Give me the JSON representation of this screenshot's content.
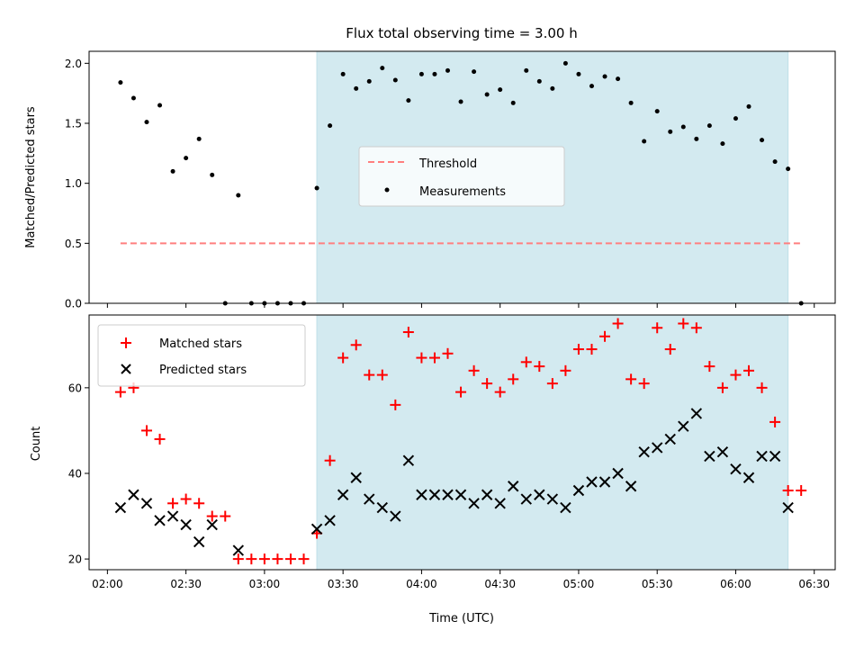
{
  "chart_data": [
    {
      "type": "scatter",
      "title": "Flux total observing time = 3.00 h",
      "ylabel": "Matched/Predicted stars",
      "ylim": [
        0,
        2.1
      ],
      "yticks": [
        "0.0",
        "0.5",
        "1.0",
        "1.5",
        "2.0"
      ],
      "xlim": [
        "01:53",
        "06:38"
      ],
      "shaded_region": {
        "x": [
          "03:20",
          "06:20"
        ],
        "color": "#d3eaf0"
      },
      "threshold": {
        "name": "Threshold",
        "y": 0.5,
        "x": [
          "02:05",
          "06:25"
        ],
        "color": "#ff7f7f",
        "style": "dashed"
      },
      "legend": {
        "placement": "center"
      },
      "series": [
        {
          "name": "Measurements",
          "marker": "dot",
          "color": "#000000",
          "points": [
            [
              "02:05",
              1.84
            ],
            [
              "02:10",
              1.71
            ],
            [
              "02:15",
              1.51
            ],
            [
              "02:20",
              1.65
            ],
            [
              "02:25",
              1.1
            ],
            [
              "02:30",
              1.21
            ],
            [
              "02:35",
              1.37
            ],
            [
              "02:40",
              1.07
            ],
            [
              "02:45",
              0
            ],
            [
              "02:50",
              0.9
            ],
            [
              "02:55",
              0
            ],
            [
              "03:00",
              0
            ],
            [
              "03:05",
              0
            ],
            [
              "03:10",
              0
            ],
            [
              "03:15",
              0
            ],
            [
              "03:20",
              0.96
            ],
            [
              "03:25",
              1.48
            ],
            [
              "03:30",
              1.91
            ],
            [
              "03:35",
              1.79
            ],
            [
              "03:40",
              1.85
            ],
            [
              "03:45",
              1.96
            ],
            [
              "03:50",
              1.86
            ],
            [
              "03:55",
              1.69
            ],
            [
              "04:00",
              1.91
            ],
            [
              "04:05",
              1.91
            ],
            [
              "04:10",
              1.94
            ],
            [
              "04:15",
              1.68
            ],
            [
              "04:20",
              1.93
            ],
            [
              "04:25",
              1.74
            ],
            [
              "04:30",
              1.78
            ],
            [
              "04:35",
              1.67
            ],
            [
              "04:40",
              1.94
            ],
            [
              "04:45",
              1.85
            ],
            [
              "04:50",
              1.79
            ],
            [
              "04:55",
              2.0
            ],
            [
              "05:00",
              1.91
            ],
            [
              "05:05",
              1.81
            ],
            [
              "05:10",
              1.89
            ],
            [
              "05:15",
              1.87
            ],
            [
              "05:20",
              1.67
            ],
            [
              "05:25",
              1.35
            ],
            [
              "05:30",
              1.6
            ],
            [
              "05:35",
              1.43
            ],
            [
              "05:40",
              1.47
            ],
            [
              "05:45",
              1.37
            ],
            [
              "05:50",
              1.48
            ],
            [
              "05:55",
              1.33
            ],
            [
              "06:00",
              1.54
            ],
            [
              "06:05",
              1.64
            ],
            [
              "06:10",
              1.36
            ],
            [
              "06:15",
              1.18
            ],
            [
              "06:20",
              1.12
            ],
            [
              "06:25",
              0
            ]
          ]
        }
      ]
    },
    {
      "type": "scatter",
      "xlabel": "Time (UTC)",
      "ylabel": "Count",
      "ylim": [
        17.5,
        77
      ],
      "yticks": [
        "20",
        "40",
        "60"
      ],
      "xlim": [
        "01:53",
        "06:38"
      ],
      "xticks": [
        "02:00",
        "02:30",
        "03:00",
        "03:30",
        "04:00",
        "04:30",
        "05:00",
        "05:30",
        "06:00",
        "06:30"
      ],
      "shaded_region": {
        "x": [
          "03:20",
          "06:20"
        ],
        "color": "#d3eaf0"
      },
      "legend": {
        "placement": "top-left"
      },
      "series": [
        {
          "name": "Matched stars",
          "marker": "plus",
          "color": "#ff0000",
          "points": [
            [
              "02:05",
              59
            ],
            [
              "02:10",
              60
            ],
            [
              "02:15",
              50
            ],
            [
              "02:20",
              48
            ],
            [
              "02:25",
              33
            ],
            [
              "02:30",
              34
            ],
            [
              "02:35",
              33
            ],
            [
              "02:40",
              30
            ],
            [
              "02:45",
              30
            ],
            [
              "02:50",
              20
            ],
            [
              "02:55",
              20
            ],
            [
              "03:00",
              20
            ],
            [
              "03:05",
              20
            ],
            [
              "03:10",
              20
            ],
            [
              "03:15",
              20
            ],
            [
              "03:20",
              26
            ],
            [
              "03:25",
              43
            ],
            [
              "03:30",
              67
            ],
            [
              "03:35",
              70
            ],
            [
              "03:40",
              63
            ],
            [
              "03:45",
              63
            ],
            [
              "03:50",
              56
            ],
            [
              "03:55",
              73
            ],
            [
              "04:00",
              67
            ],
            [
              "04:05",
              67
            ],
            [
              "04:10",
              68
            ],
            [
              "04:15",
              59
            ],
            [
              "04:20",
              64
            ],
            [
              "04:25",
              61
            ],
            [
              "04:30",
              59
            ],
            [
              "04:35",
              62
            ],
            [
              "04:40",
              66
            ],
            [
              "04:45",
              65
            ],
            [
              "04:50",
              61
            ],
            [
              "04:55",
              64
            ],
            [
              "05:00",
              69
            ],
            [
              "05:05",
              69
            ],
            [
              "05:10",
              72
            ],
            [
              "05:15",
              75
            ],
            [
              "05:20",
              62
            ],
            [
              "05:25",
              61
            ],
            [
              "05:30",
              74
            ],
            [
              "05:35",
              69
            ],
            [
              "05:40",
              75
            ],
            [
              "05:45",
              74
            ],
            [
              "05:50",
              65
            ],
            [
              "05:55",
              60
            ],
            [
              "06:00",
              63
            ],
            [
              "06:05",
              64
            ],
            [
              "06:10",
              60
            ],
            [
              "06:15",
              52
            ],
            [
              "06:20",
              36
            ],
            [
              "06:25",
              36
            ]
          ]
        },
        {
          "name": "Predicted stars",
          "marker": "x",
          "color": "#000000",
          "points": [
            [
              "02:05",
              32
            ],
            [
              "02:10",
              35
            ],
            [
              "02:15",
              33
            ],
            [
              "02:20",
              29
            ],
            [
              "02:25",
              30
            ],
            [
              "02:30",
              28
            ],
            [
              "02:35",
              24
            ],
            [
              "02:40",
              28
            ],
            [
              "02:50",
              22
            ],
            [
              "03:20",
              27
            ],
            [
              "03:25",
              29
            ],
            [
              "03:30",
              35
            ],
            [
              "03:35",
              39
            ],
            [
              "03:40",
              34
            ],
            [
              "03:45",
              32
            ],
            [
              "03:50",
              30
            ],
            [
              "03:55",
              43
            ],
            [
              "04:00",
              35
            ],
            [
              "04:05",
              35
            ],
            [
              "04:10",
              35
            ],
            [
              "04:15",
              35
            ],
            [
              "04:20",
              33
            ],
            [
              "04:25",
              35
            ],
            [
              "04:30",
              33
            ],
            [
              "04:35",
              37
            ],
            [
              "04:40",
              34
            ],
            [
              "04:45",
              35
            ],
            [
              "04:50",
              34
            ],
            [
              "04:55",
              32
            ],
            [
              "05:00",
              36
            ],
            [
              "05:05",
              38
            ],
            [
              "05:10",
              38
            ],
            [
              "05:15",
              40
            ],
            [
              "05:20",
              37
            ],
            [
              "05:25",
              45
            ],
            [
              "05:30",
              46
            ],
            [
              "05:35",
              48
            ],
            [
              "05:40",
              51
            ],
            [
              "05:45",
              54
            ],
            [
              "05:50",
              44
            ],
            [
              "05:55",
              45
            ],
            [
              "06:00",
              41
            ],
            [
              "06:05",
              39
            ],
            [
              "06:10",
              44
            ],
            [
              "06:15",
              44
            ],
            [
              "06:20",
              32
            ]
          ]
        }
      ]
    }
  ]
}
